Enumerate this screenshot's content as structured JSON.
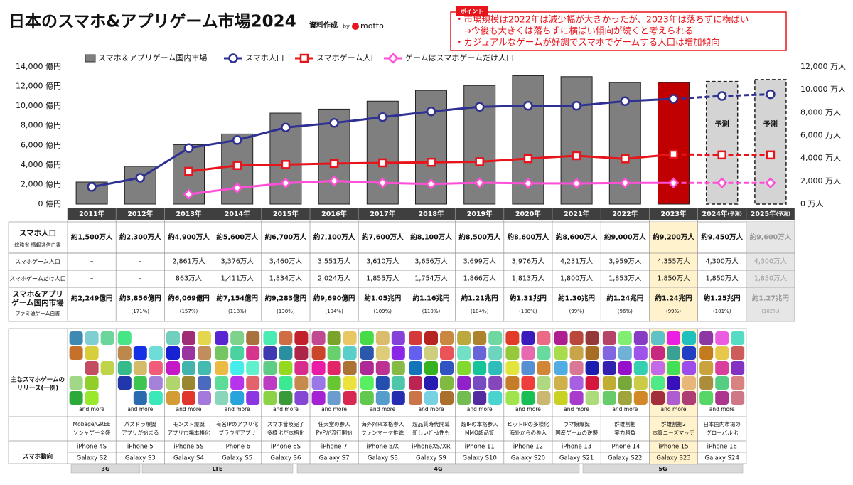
{
  "header": {
    "title": "日本のスマホ&アプリゲーム市場2024",
    "source": "資料作成",
    "by": "by",
    "brand": "motto"
  },
  "point": {
    "tag": "ポイント",
    "lines": [
      "・市場規模は2022年は減少幅が大きかったが、2023年は落ちずに横ばい",
      "　→今後も大きくは落ちずに横ばい傾向が続くと考えられる",
      "・カジュアルなゲームが好調でスマホでゲームする人口は増加傾向"
    ]
  },
  "chart_data": {
    "type": "bar_line",
    "categories": [
      "2011年",
      "2012年",
      "2013年",
      "2014年",
      "2015年",
      "2016年",
      "2017年",
      "2018年",
      "2019年",
      "2020年",
      "2021年",
      "2022年",
      "2023年",
      "2024年",
      "2025年"
    ],
    "forecast": [
      false,
      false,
      false,
      false,
      false,
      false,
      false,
      false,
      false,
      false,
      false,
      false,
      false,
      true,
      true
    ],
    "forecast_text": "予測",
    "ylim": [
      0,
      14000
    ],
    "yticks": [
      {
        "value": 0,
        "label": "0 億円"
      },
      {
        "value": 2000,
        "label": "2,000 億円"
      },
      {
        "value": 4000,
        "label": "4,000 億円"
      },
      {
        "value": 6000,
        "label": "6,000 億円"
      },
      {
        "value": 8000,
        "label": "8,000 億円"
      },
      {
        "value": 10000,
        "label": "10,000 億円"
      },
      {
        "value": 12000,
        "label": "12,000 億円"
      },
      {
        "value": 14000,
        "label": "14,000 億円"
      }
    ],
    "y2lim": [
      0,
      12000
    ],
    "y2ticks": [
      {
        "value": 0,
        "label": "0 万人"
      },
      {
        "value": 2000,
        "label": "2,000 万人"
      },
      {
        "value": 4000,
        "label": "4,000 万人"
      },
      {
        "value": 6000,
        "label": "6,000 万人"
      },
      {
        "value": 8000,
        "label": "8,000 万人"
      },
      {
        "value": 10000,
        "label": "10,000 万人"
      },
      {
        "value": 12000,
        "label": "12,000 万人"
      }
    ],
    "series": [
      {
        "name": "スマホ＆アプリゲーム国内市場",
        "type": "bar",
        "color": "#7f7f7f",
        "colors": [
          "#7f7f7f",
          "#7f7f7f",
          "#7f7f7f",
          "#7f7f7f",
          "#7f7f7f",
          "#7f7f7f",
          "#7f7f7f",
          "#7f7f7f",
          "#7f7f7f",
          "#7f7f7f",
          "#7f7f7f",
          "#7f7f7f",
          "#c00000",
          "#d4d4d4",
          "#d4d4d4"
        ],
        "values": [
          2249,
          3856,
          6069,
          7154,
          9283,
          9690,
          10500,
          11600,
          12100,
          13100,
          13000,
          12400,
          12400,
          12500,
          12700
        ],
        "value_labels": [
          "約2,249億円",
          "約3,856億円",
          "約6,069億円",
          "約7,154億円",
          "約9,283億円",
          "約9,690億円",
          "約1.05兆円",
          "約1.16兆円",
          "約1.21兆円",
          "約1.31兆円",
          "約1.30兆円",
          "約1.24兆円",
          "約1.24兆円",
          "約1.25兆円",
          "約1.27兆円"
        ],
        "growth_labels": [
          null,
          "(171%)",
          "(157%)",
          "(118%)",
          "(130%)",
          "(104%)",
          "(109%)",
          "(110%)",
          "(104%)",
          "(108%)",
          "(99%)",
          "(96%)",
          "(99%)",
          "(101%)",
          "(102%)"
        ]
      },
      {
        "name": "スマホ人口",
        "type": "line",
        "marker": "circle",
        "axis": "y2",
        "color": "#2e3192",
        "values": [
          1500,
          2300,
          4900,
          5600,
          6700,
          7100,
          7600,
          8100,
          8500,
          8600,
          8600,
          9000,
          9200,
          9450,
          9600
        ],
        "value_labels": [
          "約1,500万人",
          "約2,300万人",
          "約4,900万人",
          "約5,600万人",
          "約6,700万人",
          "約7,100万人",
          "約7,600万人",
          "約8,100万人",
          "約8,500万人",
          "約8,600万人",
          "約8,600万人",
          "約9,000万人",
          "約9,200万人",
          "約9,450万人",
          "約9,600万人"
        ]
      },
      {
        "name": "スマホゲーム人口",
        "type": "line",
        "marker": "square",
        "axis": "y2",
        "color": "#e8141b",
        "values": [
          null,
          null,
          2861,
          3376,
          3460,
          3551,
          3610,
          3656,
          3699,
          3976,
          4231,
          3959,
          4355,
          4300,
          4300
        ],
        "value_labels": [
          "–",
          "–",
          "2,861万人",
          "3,376万人",
          "3,460万人",
          "3,551万人",
          "3,610万人",
          "3,656万人",
          "3,699万人",
          "3,976万人",
          "4,231万人",
          "3,959万人",
          "4,355万人",
          "4,300万人",
          "4,300万人"
        ]
      },
      {
        "name": "ゲームはスマホゲームだけ人口",
        "type": "line",
        "marker": "diamond",
        "axis": "y2",
        "color": "#ff4fd8",
        "values": [
          null,
          null,
          863,
          1411,
          1834,
          2024,
          1855,
          1754,
          1866,
          1813,
          1800,
          1853,
          1850,
          1850,
          1850
        ],
        "value_labels": [
          "–",
          "–",
          "863万人",
          "1,411万人",
          "1,834万人",
          "2,024万人",
          "1,855万人",
          "1,754万人",
          "1,866万人",
          "1,813万人",
          "1,800万人",
          "1,853万人",
          "1,850万人",
          "1,850万人",
          "1,850万人"
        ]
      }
    ]
  },
  "table": {
    "forecast_suffix": "(予測)",
    "population_label": "スマホ人口",
    "population_source": "総務省 情報通信白書",
    "game_population_label": "スマホゲーム人口",
    "only_game_label": "スマホゲームだけ人口",
    "market_label": [
      "スマホ&アプリ",
      "ゲーム国内市場"
    ],
    "market_source": "ファミ通ゲーム白書"
  },
  "releases": {
    "label": [
      "主なスマホゲームの",
      "リリース(一例)"
    ],
    "and_more": "and more",
    "captions": [
      [
        "Mobage/GREE",
        "ソシャゲー全盛"
      ],
      [
        "パズドラ爆誕",
        "アプリが始まる"
      ],
      [
        "モンスト爆誕",
        "アプリ市場本格化"
      ],
      [
        "有名IPのアプリ化",
        "ブラウザアプリ"
      ],
      [
        "スマホ普及完了",
        "多様化が本格化"
      ],
      [
        "任天堂の参入",
        "PvPが流行開始"
      ],
      [
        "海外ﾀｲﾄﾙ本格参入",
        "ファンマーケ推進"
      ],
      [
        "超品質時代開幕",
        "新しいｹﾞｰﾑ性も"
      ],
      [
        "超IPの本格参入",
        "MMO超品質"
      ],
      [
        "ヒットIPの多様化",
        "海外からの参入"
      ],
      [
        "ウマ娘爆誕",
        "国産ゲームの逆襲"
      ],
      [
        "群雄割拠",
        "実力勝負"
      ],
      [
        "群雄割拠2",
        "本質ニーズマッチ"
      ],
      [
        "日本国内市場の",
        "グローバル化"
      ]
    ],
    "trend_label": "スマホ動向",
    "iphone": [
      "iPhone 4S",
      "iPhone 5",
      "iPhone 5S",
      "iPhone 6",
      "iPhone 6S",
      "iPhone 7",
      "iPhone 8/X",
      "iPhoneXS/XR",
      "iPhone 11",
      "iPhone 12",
      "iPhone 13",
      "iPhone 14",
      "iPhone 15",
      "iPhone 16"
    ],
    "galaxy": [
      "Galaxy S2",
      "Galaxy S3",
      "Galaxy S4",
      "Galaxy S5",
      "Galaxy S6",
      "Galaxy S7",
      "Galaxy S8",
      "Galaxy S9",
      "Galaxy S10",
      "Galaxy S20",
      "Galaxy S21",
      "Galaxy S22",
      "Galaxy S23",
      "Galaxy S24"
    ],
    "networks": [
      "3G",
      "LTE",
      "4G",
      "5G"
    ]
  }
}
